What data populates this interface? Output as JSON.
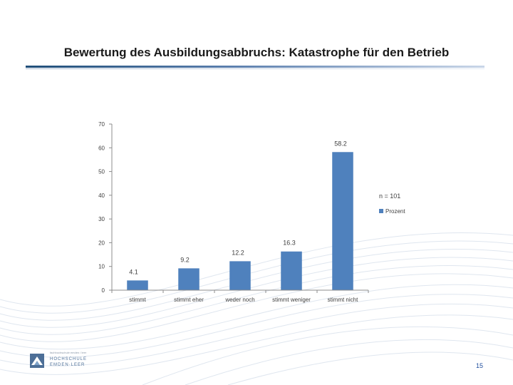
{
  "slide": {
    "title": "Bewertung des Ausbildungsabbruchs: Katastrophe für den Betrieb",
    "page_number": "15"
  },
  "logo": {
    "tagline": "fachhochschule emden / leer",
    "line1": "HOCHSCHULE",
    "line2": "EMDEN·LEER"
  },
  "colors": {
    "bar": "#4f81bd",
    "axis": "#8c8c8c",
    "title_rule": "#1f4e79",
    "page_number": "#1f4e9e"
  },
  "chart_data": {
    "type": "bar",
    "title": "",
    "categories": [
      "stimmt",
      "stimmt eher",
      "weder noch",
      "stimmt weniger",
      "stimmt nicht"
    ],
    "series": [
      {
        "name": "Prozent",
        "values": [
          4.1,
          9.2,
          12.2,
          16.3,
          58.2
        ]
      }
    ],
    "data_labels": [
      "4.1",
      "9.2",
      "12.2",
      "16.3",
      "58.2"
    ],
    "ylim": [
      0,
      70
    ],
    "yticks": [
      0,
      10,
      20,
      30,
      40,
      50,
      60,
      70
    ],
    "xlabel": "",
    "ylabel": "",
    "grid": false,
    "legend_title": "n = 101",
    "legend_position": "right"
  }
}
